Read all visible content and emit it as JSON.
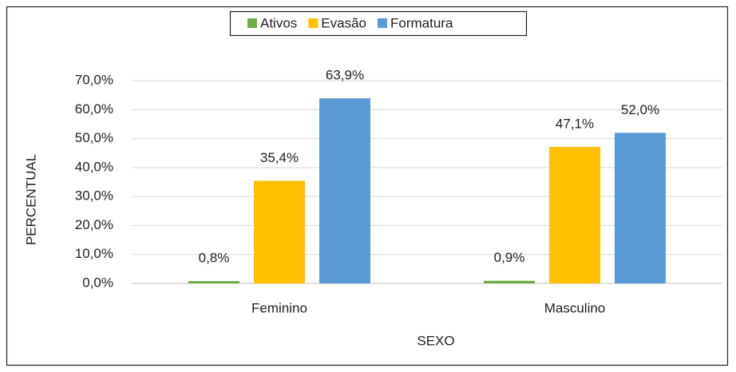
{
  "chart_data": {
    "type": "bar",
    "categories": [
      "Feminino",
      "Masculino"
    ],
    "series": [
      {
        "name": "Ativos",
        "color": "#70ad47",
        "values": [
          0.8,
          0.9
        ],
        "value_labels": [
          "0,8%",
          "0,9%"
        ]
      },
      {
        "name": "Evasão",
        "color": "#ffc000",
        "values": [
          35.4,
          47.1
        ],
        "value_labels": [
          "35,4%",
          "47,1%"
        ]
      },
      {
        "name": "Formatura",
        "color": "#5b9bd5",
        "values": [
          63.9,
          52.0
        ],
        "value_labels": [
          "63,9%",
          "52,0%"
        ]
      }
    ],
    "xlabel": "SEXO",
    "ylabel": "PERCENTUAL",
    "ylim": [
      0,
      70
    ],
    "yticks": [
      {
        "value": 0,
        "label": "0,0%"
      },
      {
        "value": 10,
        "label": "10,0%"
      },
      {
        "value": 20,
        "label": "20,0%"
      },
      {
        "value": 30,
        "label": "30,0%"
      },
      {
        "value": 40,
        "label": "40,0%"
      },
      {
        "value": 50,
        "label": "50,0%"
      },
      {
        "value": 60,
        "label": "60,0%"
      },
      {
        "value": 70,
        "label": "70,0%"
      }
    ],
    "grid": true,
    "legend": "top"
  }
}
